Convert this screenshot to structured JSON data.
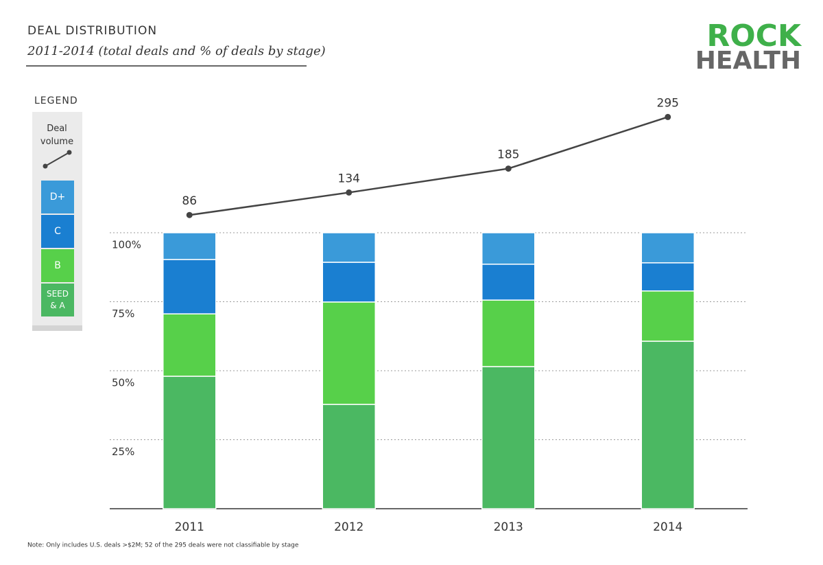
{
  "chart_data": {
    "type": "bar",
    "stacked": true,
    "title": "DEAL DISTRIBUTION",
    "subtitle": "2011-2014 (total deals and % of deals by stage)",
    "logo": {
      "top": "ROCK",
      "bottom": "HEALTH"
    },
    "legend_title": "LEGEND",
    "note": "Note: Only includes U.S. deals >$2M; 52 of the 295 deals were not classifiable by stage",
    "categories": [
      "2011",
      "2012",
      "2013",
      "2014"
    ],
    "series": [
      {
        "name": "SEED & A",
        "color": "#4bb862",
        "values": [
          48.0,
          37.8,
          51.5,
          60.7
        ]
      },
      {
        "name": "B",
        "color": "#57d04a",
        "values": [
          22.6,
          37.1,
          24.1,
          18.2
        ]
      },
      {
        "name": "C",
        "color": "#1a7fd1",
        "values": [
          19.7,
          14.4,
          13.0,
          10.2
        ]
      },
      {
        "name": "D+",
        "color": "#3a9ad9",
        "values": [
          9.7,
          10.7,
          11.4,
          10.9
        ]
      },
      {
        "name": "Deal volume",
        "type": "line",
        "axis": "y2",
        "color": "#444444",
        "values": [
          86,
          134,
          185,
          295
        ]
      }
    ],
    "ylim": [
      0,
      100
    ],
    "yticks": [
      {
        "value": 25,
        "label": "25%"
      },
      {
        "value": 50,
        "label": "50%"
      },
      {
        "value": 75,
        "label": "75%"
      },
      {
        "value": 100,
        "label": "100%"
      }
    ],
    "y2lim": [
      0,
      300
    ],
    "grid": true
  }
}
